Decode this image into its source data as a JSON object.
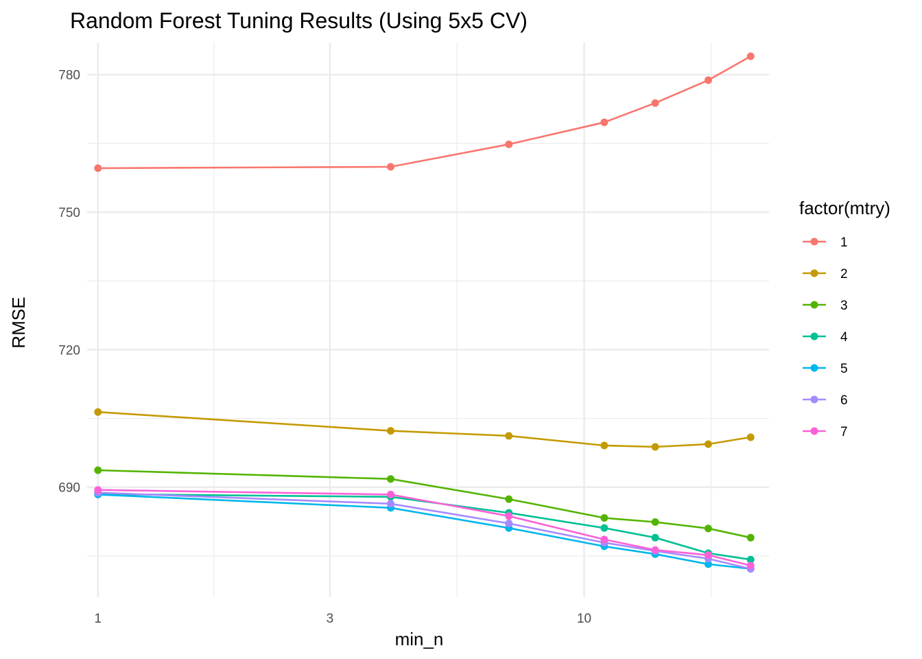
{
  "chart_data": {
    "type": "line",
    "title": "Random Forest Tuning Results (Using 5x5 CV)",
    "xlabel": "min_n",
    "ylabel": "RMSE",
    "x_scale": "log10",
    "x": [
      1,
      4,
      7,
      11,
      14,
      18,
      22
    ],
    "xlim": [
      0.95,
      24
    ],
    "x_ticks": [
      1,
      3,
      10
    ],
    "ylim": [
      666,
      787
    ],
    "y_ticks": [
      690,
      720,
      750,
      780
    ],
    "grid": true,
    "legend": {
      "title": "factor(mtry)",
      "position": "right"
    },
    "series": [
      {
        "name": "1",
        "color": "#F8766D",
        "values": [
          759.6,
          759.9,
          764.8,
          769.6,
          773.8,
          778.8,
          784.0
        ]
      },
      {
        "name": "2",
        "color": "#C49A00",
        "values": [
          706.4,
          702.3,
          701.2,
          699.1,
          698.8,
          699.4,
          700.9
        ]
      },
      {
        "name": "3",
        "color": "#53B400",
        "values": [
          693.7,
          691.8,
          687.4,
          683.3,
          682.4,
          681.0,
          679.0
        ]
      },
      {
        "name": "4",
        "color": "#00C094",
        "values": [
          688.5,
          687.9,
          684.4,
          681.1,
          679.0,
          675.6,
          674.2
        ]
      },
      {
        "name": "5",
        "color": "#00B6EB",
        "values": [
          688.4,
          685.5,
          681.1,
          677.1,
          675.4,
          673.2,
          672.2
        ]
      },
      {
        "name": "6",
        "color": "#A58AFF",
        "values": [
          688.8,
          686.4,
          682.1,
          677.9,
          676.1,
          674.4,
          672.2
        ]
      },
      {
        "name": "7",
        "color": "#FB61D7",
        "values": [
          689.4,
          688.4,
          683.7,
          678.6,
          676.3,
          675.2,
          672.9
        ]
      }
    ]
  }
}
